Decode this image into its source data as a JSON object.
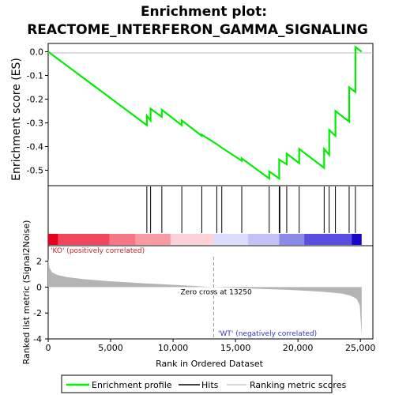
{
  "chart_data": {
    "type": "line",
    "title_line1": "Enrichment plot:",
    "title_line2": "REACTOME_INTERFERON_GAMMA_SIGNALING",
    "top_panel": {
      "ylabel": "Enrichment score (ES)",
      "ylim": [
        -0.565,
        0.035
      ],
      "yticks": [
        0.0,
        -0.1,
        -0.2,
        -0.3,
        -0.4,
        -0.5
      ],
      "ytick_labels": [
        "0.0",
        "-0.1",
        "-0.2",
        "-0.3",
        "-0.4",
        "-0.5"
      ],
      "series": [
        {
          "name": "Enrichment profile",
          "color": "#00ee00",
          "x": [
            0,
            7900,
            7900,
            8200,
            8200,
            9100,
            9100,
            10700,
            10700,
            12300,
            12300,
            13500,
            13500,
            13900,
            13900,
            15500,
            15500,
            17700,
            17700,
            18500,
            18500,
            19100,
            19100,
            20100,
            20100,
            22100,
            22100,
            22500,
            22500,
            23000,
            23000,
            24100,
            24100,
            24600,
            24600,
            25100
          ],
          "y": [
            0.0,
            -0.31,
            -0.27,
            -0.29,
            -0.24,
            -0.275,
            -0.245,
            -0.31,
            -0.29,
            -0.355,
            -0.35,
            -0.39,
            -0.39,
            -0.405,
            -0.405,
            -0.46,
            -0.45,
            -0.535,
            -0.505,
            -0.535,
            -0.455,
            -0.475,
            -0.43,
            -0.47,
            -0.41,
            -0.49,
            -0.41,
            -0.435,
            -0.33,
            -0.355,
            -0.25,
            -0.295,
            -0.15,
            -0.17,
            0.02,
            0.0
          ]
        }
      ]
    },
    "hits": {
      "name": "Hits",
      "color": "#000000",
      "positions": [
        7900,
        8200,
        9100,
        10700,
        12300,
        13500,
        13900,
        15500,
        17700,
        18500,
        18550,
        19100,
        20100,
        22100,
        22500,
        23000,
        24100,
        24600
      ]
    },
    "color_bar": {
      "label_left": "'KO' (positively correlated)",
      "label_right": "'WT' (negatively correlated)",
      "label_left_color": "#cc2222",
      "label_right_color": "#3333cc",
      "segments": [
        {
          "from": 0,
          "to": 800,
          "color": "#e8001a"
        },
        {
          "from": 800,
          "to": 4900,
          "color": "#f0455c"
        },
        {
          "from": 4900,
          "to": 7000,
          "color": "#f57786"
        },
        {
          "from": 7000,
          "to": 9800,
          "color": "#f89aa4"
        },
        {
          "from": 9800,
          "to": 13250,
          "color": "#fcd2d8"
        },
        {
          "from": 13250,
          "to": 16000,
          "color": "#dcdcfc"
        },
        {
          "from": 16000,
          "to": 18500,
          "color": "#c2c2f6"
        },
        {
          "from": 18500,
          "to": 20500,
          "color": "#8a8ae8"
        },
        {
          "from": 20500,
          "to": 24300,
          "color": "#5a4ee0"
        },
        {
          "from": 24300,
          "to": 25100,
          "color": "#1a06c8"
        }
      ]
    },
    "bottom_panel": {
      "ylabel": "Ranked list metric (Signal2Noise)",
      "xlabel": "Rank in Ordered Dataset",
      "ylim": [
        -4,
        3.2
      ],
      "yticks": [
        2,
        0,
        -2,
        -4
      ],
      "ytick_labels": [
        "2",
        "0",
        "-2",
        "-4"
      ],
      "xlim": [
        0,
        26000
      ],
      "xticks": [
        0,
        5000,
        10000,
        15000,
        20000,
        25000
      ],
      "xtick_labels": [
        "0",
        "5,000",
        "10,000",
        "15,000",
        "20,000",
        "25,000"
      ],
      "zero_cross_rank": 13250,
      "zero_cross_label": "Zero cross at 13250",
      "metric_curve": {
        "x": [
          0,
          100,
          300,
          700,
          1500,
          3000,
          5000,
          8000,
          10000,
          13250,
          16000,
          19000,
          21000,
          22500,
          23500,
          24200,
          24700,
          24950,
          25100
        ],
        "y": [
          2.2,
          1.5,
          1.15,
          0.95,
          0.78,
          0.6,
          0.45,
          0.28,
          0.18,
          0.0,
          -0.1,
          -0.2,
          -0.3,
          -0.4,
          -0.5,
          -0.65,
          -0.9,
          -1.4,
          -3.8
        ]
      },
      "fill_color": "#b4b4b4"
    },
    "legend": {
      "items": [
        {
          "label": "Enrichment profile",
          "color": "#00ee00"
        },
        {
          "label": "Hits",
          "color": "#000000"
        },
        {
          "label": "Ranking metric scores",
          "color": "#cccccc"
        }
      ]
    }
  }
}
